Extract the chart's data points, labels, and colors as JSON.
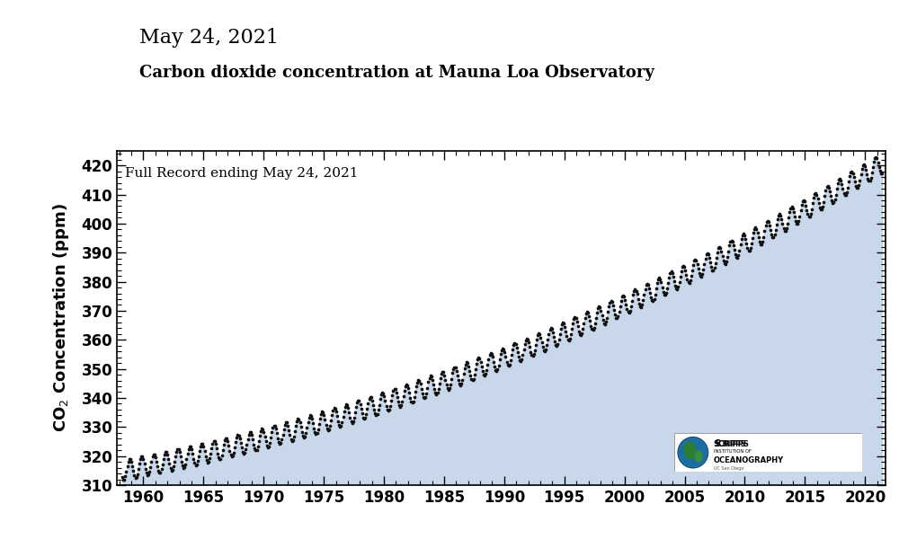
{
  "date_start": 1957.8,
  "date_end": 2021.7,
  "ylim": [
    310,
    425
  ],
  "yticks": [
    310,
    320,
    330,
    340,
    350,
    360,
    370,
    380,
    390,
    400,
    410,
    420
  ],
  "xticks": [
    1960,
    1965,
    1970,
    1975,
    1980,
    1985,
    1990,
    1995,
    2000,
    2005,
    2010,
    2015,
    2020
  ],
  "title_date": "May 24, 2021",
  "title_main": "Carbon dioxide concentration at Mauna Loa Observatory",
  "ylabel": "CO$_2$ Concentration (ppm)",
  "annotation": "Full Record ending May 24, 2021",
  "fill_color": "#c8d8ea",
  "dot_color": "#111111",
  "background_color": "#ffffff",
  "axis_bg_color": "#ffffff",
  "title_date_fontsize": 16,
  "title_main_fontsize": 13,
  "ylabel_fontsize": 13,
  "tick_labelsize": 12,
  "annotation_fontsize": 11
}
